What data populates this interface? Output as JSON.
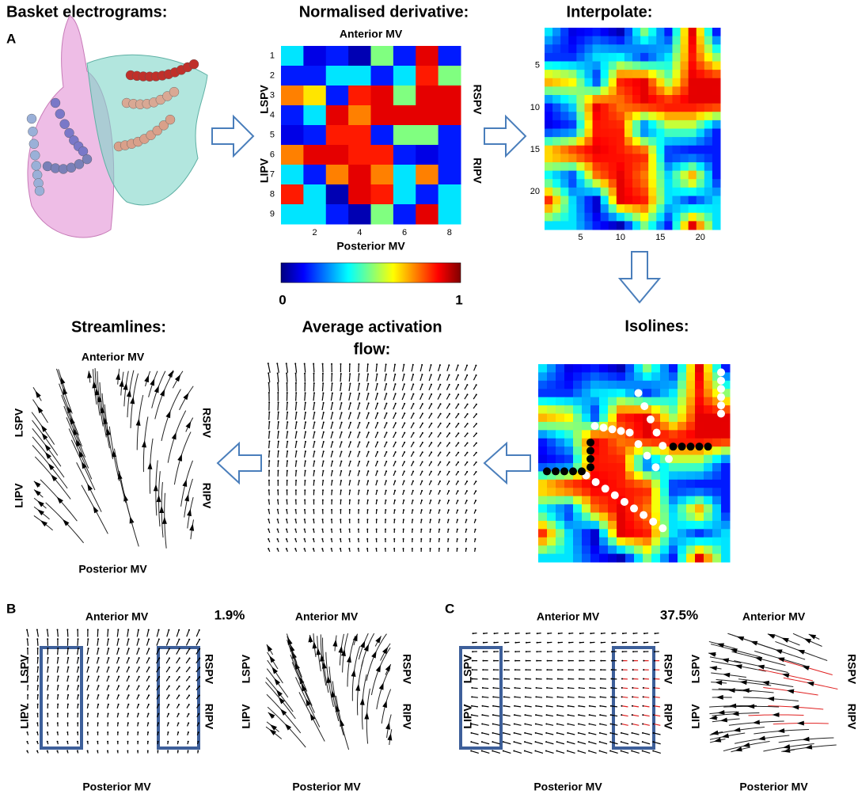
{
  "panel_a": {
    "label": "A",
    "basket": {
      "title": "Basket electrograms:"
    },
    "derivative": {
      "title": "Normalised derivative:",
      "top": "Anterior MV",
      "bottom": "Posterior MV",
      "left_labels": [
        "LSPV",
        "LIPV"
      ],
      "right_labels": [
        "RSPV",
        "RIPV"
      ],
      "row_ticks": [
        1,
        2,
        3,
        4,
        5,
        6,
        7,
        8,
        9
      ],
      "col_ticks": [
        2,
        4,
        6,
        8
      ],
      "values": [
        [
          0.35,
          0.1,
          0.15,
          0.05,
          0.5,
          0.15,
          0.9,
          0.15
        ],
        [
          0.15,
          0.15,
          0.35,
          0.35,
          0.15,
          0.35,
          0.85,
          0.5
        ],
        [
          0.75,
          0.65,
          0.15,
          0.85,
          0.9,
          0.5,
          0.9,
          0.9
        ],
        [
          0.15,
          0.35,
          0.9,
          0.75,
          0.9,
          0.9,
          0.9,
          0.9
        ],
        [
          0.1,
          0.15,
          0.85,
          0.85,
          0.15,
          0.5,
          0.5,
          0.15
        ],
        [
          0.75,
          0.9,
          0.9,
          0.85,
          0.85,
          0.15,
          0.1,
          0.15
        ],
        [
          0.35,
          0.15,
          0.75,
          0.9,
          0.75,
          0.35,
          0.75,
          0.15
        ],
        [
          0.85,
          0.35,
          0.05,
          0.9,
          0.85,
          0.35,
          0.15,
          0.35
        ],
        [
          0.35,
          0.35,
          0.15,
          0.05,
          0.5,
          0.15,
          0.9,
          0.35
        ]
      ],
      "colorbar": {
        "min": 0,
        "max": 1
      }
    },
    "interpolate": {
      "title": "Interpolate:",
      "yticks": [
        5,
        10,
        15,
        20
      ],
      "xticks": [
        5,
        10,
        15,
        20
      ]
    },
    "isolines": {
      "title": "Isolines:"
    },
    "flow": {
      "title_lines": [
        "Average activation",
        "flow:"
      ]
    },
    "streamlines": {
      "title": "Streamlines:",
      "top": "Anterior MV",
      "bottom": "Posterior MV",
      "left_labels": [
        "LSPV",
        "LIPV"
      ],
      "right_labels": [
        "RSPV",
        "RIPV"
      ]
    }
  },
  "panel_b": {
    "label": "B",
    "percent": "1.9%",
    "flow": {
      "top": "Anterior MV",
      "bottom": "Posterior MV",
      "left_labels": [
        "LSPV",
        "LIPV"
      ],
      "right_labels": [
        "RSPV",
        "RIPV"
      ]
    },
    "streamlines": {
      "top": "Anterior MV",
      "bottom": "Posterior MV",
      "left_labels": [
        "LSPV",
        "LIPV"
      ],
      "right_labels": [
        "RSPV",
        "RIPV"
      ]
    }
  },
  "panel_c": {
    "label": "C",
    "percent": "37.5%",
    "flow": {
      "top": "Anterior MV",
      "bottom": "Posterior MV",
      "left_labels": [
        "LSPV",
        "LIPV"
      ],
      "right_labels": [
        "RSPV",
        "RIPV"
      ]
    },
    "streamlines": {
      "top": "Anterior MV",
      "bottom": "Posterior MV",
      "left_labels": [
        "LSPV",
        "LIPV"
      ],
      "right_labels": [
        "RSPV",
        "RIPV"
      ]
    }
  }
}
